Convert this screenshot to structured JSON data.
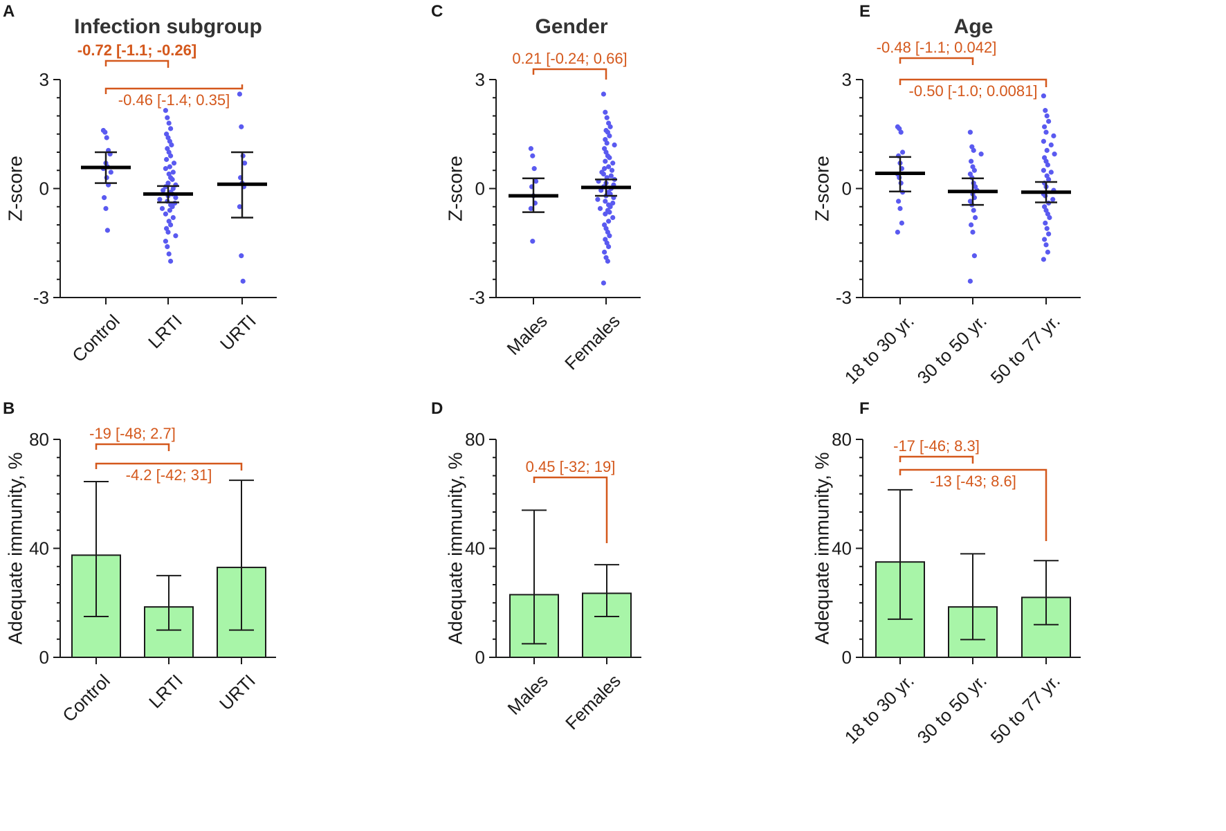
{
  "colors": {
    "axis": "#1a1a1a",
    "dot": "#5a5af0",
    "bar_fill": "#a8f5a8",
    "annotation": "#d4581c"
  },
  "chart_data": [
    {
      "panel": "A",
      "type": "scatter",
      "title": "Infection subgroup",
      "ylabel": "Z-score",
      "ylim": [
        -3,
        3
      ],
      "yticks": [
        3,
        0,
        -3
      ],
      "ytick_labels": [
        "3",
        "0",
        "-3"
      ],
      "categories": [
        "Control",
        "LRTI",
        "URTI"
      ],
      "means": [
        0.58,
        -0.15,
        0.12
      ],
      "ci": [
        [
          0.15,
          1.0
        ],
        [
          -0.38,
          0.07
        ],
        [
          -0.8,
          1.0
        ]
      ],
      "points": [
        [
          1.6,
          1.55,
          1.4,
          1.05,
          0.95,
          0.7,
          0.6,
          0.55,
          0.45,
          0.3,
          0.1,
          -0.25,
          -0.55,
          -1.15
        ],
        [
          2.15,
          1.95,
          1.8,
          1.65,
          1.5,
          1.4,
          1.3,
          1.2,
          1.1,
          1.0,
          0.9,
          0.8,
          0.7,
          0.6,
          0.55,
          0.45,
          0.4,
          0.3,
          0.25,
          0.15,
          0.1,
          0.05,
          0.0,
          -0.05,
          -0.1,
          -0.15,
          -0.2,
          -0.25,
          -0.3,
          -0.35,
          -0.4,
          -0.45,
          -0.5,
          -0.55,
          -0.6,
          -0.7,
          -0.8,
          -0.9,
          -1.0,
          -1.1,
          -1.2,
          -1.3,
          -1.45,
          -1.6,
          -1.8,
          -2.0
        ],
        [
          2.6,
          1.7,
          0.9,
          0.7,
          0.3,
          0.15,
          0.05,
          -0.5,
          -1.85,
          -2.55
        ]
      ],
      "brackets": [
        {
          "from": 0,
          "to": 1,
          "label": "-0.72 [-1.1; -0.26]",
          "bold": true
        },
        {
          "from": 0,
          "to": 2,
          "label": "-0.46 [-1.4; 0.35]",
          "bold": false
        }
      ]
    },
    {
      "panel": "B",
      "type": "bar",
      "title": "",
      "ylabel": "Adequate immunity, %",
      "ylim": [
        0,
        80
      ],
      "yticks": [
        80,
        40,
        0
      ],
      "ytick_labels": [
        "80",
        "40",
        "0"
      ],
      "categories": [
        "Control",
        "LRTI",
        "URTI"
      ],
      "values": [
        37.5,
        18.5,
        33
      ],
      "errors": [
        [
          15,
          64.5
        ],
        [
          10,
          30
        ],
        [
          10,
          65
        ]
      ],
      "brackets": [
        {
          "from": 0,
          "to": 1,
          "label": "-19 [-48; 2.7]",
          "bold": false
        },
        {
          "from": 0,
          "to": 2,
          "label": "-4.2 [-42; 31]",
          "bold": false
        }
      ]
    },
    {
      "panel": "C",
      "type": "scatter",
      "title": "Gender",
      "ylabel": "Z-score",
      "ylim": [
        -3,
        3
      ],
      "yticks": [
        3,
        0,
        -3
      ],
      "ytick_labels": [
        "3",
        "0",
        "-3"
      ],
      "categories": [
        "Males",
        "Females"
      ],
      "means": [
        -0.2,
        0.03
      ],
      "ci": [
        [
          -0.65,
          0.28
        ],
        [
          -0.2,
          0.25
        ]
      ],
      "points": [
        [
          1.1,
          0.9,
          0.55,
          0.2,
          0.05,
          -0.2,
          -0.4,
          -0.55,
          -1.45
        ],
        [
          2.6,
          2.1,
          1.95,
          1.8,
          1.7,
          1.6,
          1.55,
          1.45,
          1.35,
          1.25,
          1.2,
          1.1,
          1.0,
          0.9,
          0.85,
          0.75,
          0.7,
          0.6,
          0.55,
          0.5,
          0.45,
          0.4,
          0.35,
          0.3,
          0.25,
          0.2,
          0.15,
          0.1,
          0.05,
          0.0,
          -0.05,
          -0.1,
          -0.15,
          -0.2,
          -0.25,
          -0.3,
          -0.35,
          -0.4,
          -0.45,
          -0.5,
          -0.55,
          -0.6,
          -0.65,
          -0.7,
          -0.8,
          -0.9,
          -1.0,
          -1.1,
          -1.2,
          -1.3,
          -1.4,
          -1.5,
          -1.6,
          -1.75,
          -1.9,
          -2.0,
          -2.6
        ]
      ],
      "brackets": [
        {
          "from": 0,
          "to": 1,
          "label": "0.21 [-0.24; 0.66]",
          "bold": false
        }
      ]
    },
    {
      "panel": "D",
      "type": "bar",
      "title": "",
      "ylabel": "Adequate immunity, %",
      "ylim": [
        0,
        80
      ],
      "yticks": [
        80,
        40,
        0
      ],
      "ytick_labels": [
        "80",
        "40",
        "0"
      ],
      "categories": [
        "Males",
        "Females"
      ],
      "values": [
        23,
        23.5
      ],
      "errors": [
        [
          5,
          54
        ],
        [
          15,
          34
        ]
      ],
      "brackets": [
        {
          "from": 0,
          "to": 1,
          "label": "0.45 [-32; 19]",
          "bold": false
        }
      ]
    },
    {
      "panel": "E",
      "type": "scatter",
      "title": "Age",
      "ylabel": "Z-score",
      "ylim": [
        -3,
        3
      ],
      "yticks": [
        3,
        0,
        -3
      ],
      "ytick_labels": [
        "3",
        "0",
        "-3"
      ],
      "categories": [
        "18 to 30 yr.",
        "30 to 50 yr.",
        "50 to 77 yr."
      ],
      "means": [
        0.42,
        -0.08,
        -0.1
      ],
      "ci": [
        [
          -0.08,
          0.87
        ],
        [
          -0.45,
          0.28
        ],
        [
          -0.38,
          0.18
        ]
      ],
      "points": [
        [
          1.7,
          1.65,
          1.55,
          1.0,
          0.9,
          0.7,
          0.55,
          0.4,
          0.3,
          0.15,
          -0.1,
          -0.35,
          -0.55,
          -0.95,
          -1.2
        ],
        [
          1.55,
          1.15,
          1.05,
          0.95,
          0.75,
          0.6,
          0.5,
          0.4,
          0.3,
          0.15,
          0.05,
          -0.05,
          -0.15,
          -0.25,
          -0.35,
          -0.45,
          -0.6,
          -0.8,
          -1.0,
          -1.2,
          -1.85,
          -2.55
        ],
        [
          2.55,
          2.15,
          2.0,
          1.85,
          1.7,
          1.55,
          1.45,
          1.3,
          1.2,
          1.05,
          0.95,
          0.85,
          0.75,
          0.65,
          0.5,
          0.45,
          0.35,
          0.25,
          0.15,
          0.05,
          -0.05,
          -0.15,
          -0.2,
          -0.3,
          -0.4,
          -0.5,
          -0.6,
          -0.7,
          -0.8,
          -0.95,
          -1.1,
          -1.25,
          -1.4,
          -1.55,
          -1.75,
          -1.95
        ]
      ],
      "brackets": [
        {
          "from": 0,
          "to": 1,
          "label": "-0.48 [-1.1; 0.042]",
          "bold": false
        },
        {
          "from": 0,
          "to": 2,
          "label": "-0.50 [-1.0; 0.0081]",
          "bold": false
        }
      ]
    },
    {
      "panel": "F",
      "type": "bar",
      "title": "",
      "ylabel": "Adequate immunity, %",
      "ylim": [
        0,
        80
      ],
      "yticks": [
        80,
        40,
        0
      ],
      "ytick_labels": [
        "80",
        "40",
        "0"
      ],
      "categories": [
        "18 to 30 yr.",
        "30 to 50 yr.",
        "50 to 77 yr."
      ],
      "values": [
        35,
        18.5,
        22
      ],
      "errors": [
        [
          14,
          61.5
        ],
        [
          6.5,
          38
        ],
        [
          12,
          35.5
        ]
      ],
      "brackets": [
        {
          "from": 0,
          "to": 1,
          "label": "-17 [-46; 8.3]",
          "bold": false
        },
        {
          "from": 0,
          "to": 2,
          "label": "-13 [-43; 8.6]",
          "bold": false
        }
      ]
    }
  ]
}
